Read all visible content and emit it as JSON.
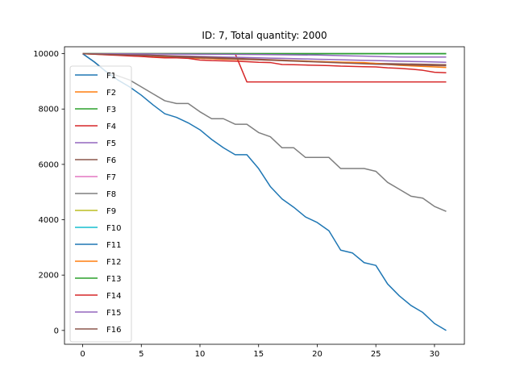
{
  "chart_data": {
    "type": "line",
    "title": "ID: 7, Total quantity: 2000",
    "xlabel": "",
    "ylabel": "",
    "xlim": [
      -1.55,
      32.55
    ],
    "ylim": [
      -500,
      10250
    ],
    "xticks": [
      0,
      5,
      10,
      15,
      20,
      25,
      30
    ],
    "yticks": [
      0,
      2000,
      4000,
      6000,
      8000,
      10000
    ],
    "grid": false,
    "legend_position": "upper-left",
    "series": [
      {
        "name": "F1",
        "color": "#1f77b4",
        "x": [
          0,
          31
        ],
        "y": [
          10000,
          10000
        ]
      },
      {
        "name": "F2",
        "color": "#ff7f0e",
        "x": [
          0,
          31
        ],
        "y": [
          10000,
          10000
        ]
      },
      {
        "name": "F3",
        "color": "#2ca02c",
        "x": [
          0,
          31
        ],
        "y": [
          10000,
          10000
        ]
      },
      {
        "name": "F4",
        "color": "#d62728",
        "x": [
          0,
          13,
          14,
          31
        ],
        "y": [
          10000,
          10000,
          8980,
          8980
        ]
      },
      {
        "name": "F5",
        "color": "#9467bd",
        "x": [
          0,
          1,
          2,
          3,
          4,
          5,
          6,
          7,
          8,
          9,
          10,
          11,
          12,
          13,
          14,
          15,
          16,
          17,
          18,
          19,
          20,
          21,
          22,
          23,
          24,
          25,
          26,
          27,
          28,
          29,
          30,
          31
        ],
        "y": [
          10000,
          9990,
          9980,
          9970,
          9960,
          9950,
          9940,
          9930,
          9920,
          9910,
          9900,
          9890,
          9880,
          9870,
          9860,
          9850,
          9840,
          9830,
          9820,
          9810,
          9800,
          9790,
          9780,
          9770,
          9760,
          9750,
          9740,
          9730,
          9720,
          9710,
          9700,
          9690
        ]
      },
      {
        "name": "F6",
        "color": "#8c564b",
        "x": [
          0,
          5,
          10,
          15,
          20,
          25,
          31
        ],
        "y": [
          10000,
          9960,
          9880,
          9800,
          9720,
          9650,
          9600
        ]
      },
      {
        "name": "F7",
        "color": "#e377c2",
        "x": [
          0,
          31
        ],
        "y": [
          10000,
          10000
        ]
      },
      {
        "name": "F8",
        "color": "#7f7f7f",
        "x": [
          0,
          1,
          2,
          3,
          4,
          5,
          6,
          7,
          8,
          9,
          10,
          11,
          12,
          13,
          14,
          15,
          16,
          17,
          18,
          19,
          20,
          21,
          22,
          23,
          24,
          25,
          26,
          27,
          28,
          29,
          30,
          31
        ],
        "y": [
          10000,
          9700,
          9350,
          9200,
          9050,
          8800,
          8550,
          8300,
          8200,
          8200,
          7900,
          7650,
          7650,
          7450,
          7450,
          7150,
          7000,
          6600,
          6600,
          6250,
          6250,
          6250,
          5850,
          5850,
          5850,
          5750,
          5350,
          5100,
          4850,
          4780,
          4480,
          4300
        ]
      },
      {
        "name": "F9",
        "color": "#bcbd22",
        "x": [
          0,
          31
        ],
        "y": [
          10000,
          10000
        ]
      },
      {
        "name": "F10",
        "color": "#17becf",
        "x": [
          0,
          31
        ],
        "y": [
          10000,
          10000
        ]
      },
      {
        "name": "F11",
        "color": "#1f77b4",
        "x": [
          0,
          1,
          2,
          3,
          4,
          5,
          6,
          7,
          8,
          9,
          10,
          11,
          12,
          13,
          14,
          15,
          16,
          17,
          18,
          19,
          20,
          21,
          22,
          23,
          24,
          25,
          26,
          27,
          28,
          29,
          30,
          31
        ],
        "y": [
          10000,
          9700,
          9350,
          9050,
          8800,
          8500,
          8150,
          7830,
          7700,
          7500,
          7250,
          6900,
          6600,
          6350,
          6350,
          5850,
          5200,
          4750,
          4450,
          4100,
          3900,
          3600,
          2900,
          2800,
          2450,
          2350,
          1680,
          1250,
          900,
          650,
          250,
          0
        ]
      },
      {
        "name": "F12",
        "color": "#ff7f0e",
        "x": [
          0,
          3,
          6,
          9,
          12,
          15,
          18,
          21,
          24,
          27,
          30,
          31
        ],
        "y": [
          10000,
          9950,
          9880,
          9850,
          9800,
          9780,
          9740,
          9700,
          9680,
          9580,
          9520,
          9500
        ]
      },
      {
        "name": "F13",
        "color": "#2ca02c",
        "x": [
          0,
          31
        ],
        "y": [
          10000,
          10000
        ]
      },
      {
        "name": "F14",
        "color": "#d62728",
        "x": [
          0,
          1,
          2,
          3,
          4,
          5,
          6,
          7,
          8,
          9,
          10,
          11,
          12,
          13,
          14,
          15,
          16,
          17,
          18,
          19,
          20,
          21,
          22,
          23,
          24,
          25,
          26,
          27,
          28,
          29,
          30,
          31
        ],
        "y": [
          10000,
          9980,
          9960,
          9940,
          9920,
          9900,
          9870,
          9850,
          9850,
          9830,
          9770,
          9750,
          9740,
          9730,
          9710,
          9690,
          9680,
          9610,
          9600,
          9590,
          9580,
          9570,
          9550,
          9540,
          9530,
          9520,
          9490,
          9470,
          9440,
          9400,
          9330,
          9310
        ]
      },
      {
        "name": "F15",
        "color": "#9467bd",
        "x": [
          0,
          5,
          10,
          15,
          20,
          21,
          22,
          23,
          24,
          25,
          26,
          27,
          28,
          29,
          30,
          31
        ],
        "y": [
          10000,
          9990,
          9980,
          9970,
          9950,
          9940,
          9930,
          9920,
          9910,
          9900,
          9890,
          9880,
          9880,
          9880,
          9880,
          9880
        ]
      },
      {
        "name": "F16",
        "color": "#8c564b",
        "x": [
          0,
          5,
          10,
          15,
          20,
          25,
          31
        ],
        "y": [
          10000,
          9940,
          9850,
          9780,
          9700,
          9620,
          9560
        ]
      }
    ]
  }
}
